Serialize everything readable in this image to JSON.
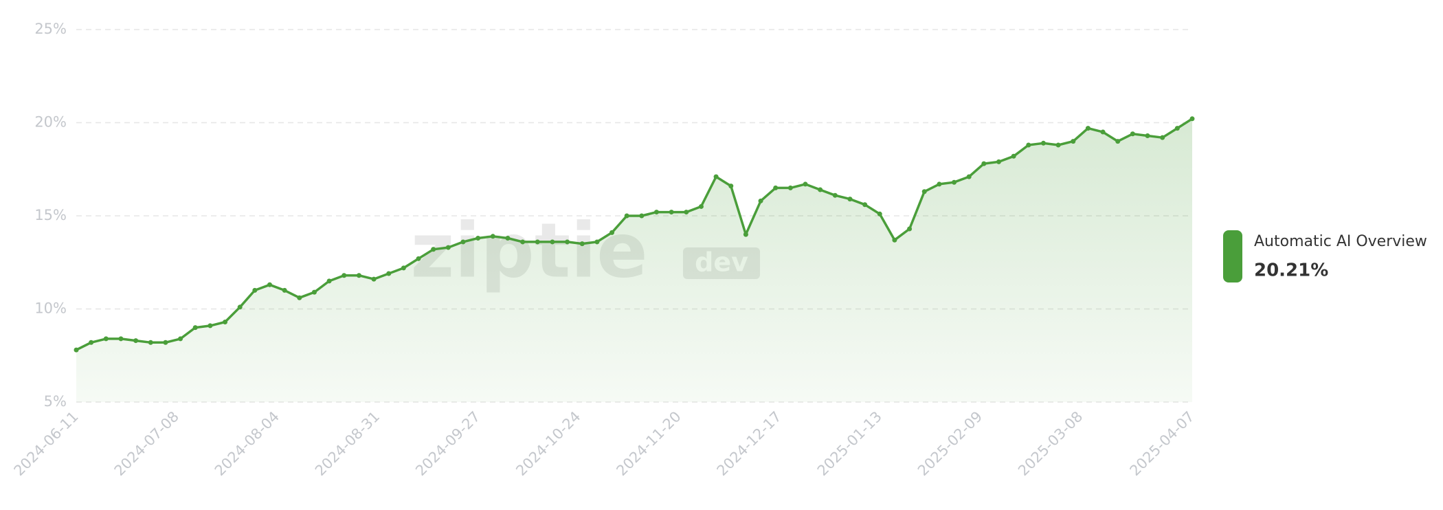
{
  "chart_data": {
    "type": "line",
    "x": [
      "2024-06-11",
      "2024-06-15",
      "2024-06-19",
      "2024-06-23",
      "2024-06-27",
      "2024-07-01",
      "2024-07-05",
      "2024-07-09",
      "2024-07-13",
      "2024-07-17",
      "2024-07-21",
      "2024-07-25",
      "2024-07-29",
      "2024-08-02",
      "2024-08-06",
      "2024-08-10",
      "2024-08-14",
      "2024-08-18",
      "2024-08-22",
      "2024-08-26",
      "2024-08-30",
      "2024-09-03",
      "2024-09-07",
      "2024-09-11",
      "2024-09-15",
      "2024-09-19",
      "2024-09-23",
      "2024-09-27",
      "2024-10-01",
      "2024-10-05",
      "2024-10-09",
      "2024-10-13",
      "2024-10-17",
      "2024-10-21",
      "2024-10-25",
      "2024-10-29",
      "2024-11-02",
      "2024-11-06",
      "2024-11-10",
      "2024-11-14",
      "2024-11-18",
      "2024-11-22",
      "2024-11-26",
      "2024-11-30",
      "2024-12-04",
      "2024-12-08",
      "2024-12-12",
      "2024-12-16",
      "2024-12-20",
      "2024-12-24",
      "2024-12-28",
      "2025-01-01",
      "2025-01-05",
      "2025-01-09",
      "2025-01-13",
      "2025-01-17",
      "2025-01-21",
      "2025-01-25",
      "2025-01-29",
      "2025-02-02",
      "2025-02-06",
      "2025-02-10",
      "2025-02-14",
      "2025-02-18",
      "2025-02-22",
      "2025-02-26",
      "2025-03-02",
      "2025-03-06",
      "2025-03-10",
      "2025-03-14",
      "2025-03-18",
      "2025-03-22",
      "2025-03-26",
      "2025-03-30",
      "2025-04-03",
      "2025-04-07"
    ],
    "series": [
      {
        "name": "Automatic AI Overview",
        "color": "#4a9e3a",
        "values": [
          7.8,
          8.2,
          8.4,
          8.4,
          8.3,
          8.2,
          8.2,
          8.4,
          9.0,
          9.1,
          9.3,
          10.1,
          11.0,
          11.3,
          11.0,
          10.6,
          10.9,
          11.5,
          11.8,
          11.8,
          11.6,
          11.9,
          12.2,
          12.7,
          13.2,
          13.3,
          13.6,
          13.8,
          13.9,
          13.8,
          13.6,
          13.6,
          13.6,
          13.6,
          13.5,
          13.6,
          14.1,
          15.0,
          15.0,
          15.2,
          15.2,
          15.2,
          15.5,
          17.1,
          16.6,
          14.0,
          15.8,
          16.5,
          16.5,
          16.7,
          16.4,
          16.1,
          15.9,
          15.6,
          15.1,
          13.7,
          14.3,
          16.3,
          16.7,
          16.8,
          17.1,
          17.8,
          17.9,
          18.2,
          18.8,
          18.9,
          18.8,
          19.0,
          19.7,
          19.5,
          19.0,
          19.4,
          19.3,
          19.2,
          19.7,
          20.21
        ],
        "legend_value": "20.21%"
      }
    ],
    "xlim": [
      "2024-06-11",
      "2025-04-07"
    ],
    "xticks": [
      "2024-06-11",
      "2024-07-08",
      "2024-08-04",
      "2024-08-31",
      "2024-09-27",
      "2024-10-24",
      "2024-11-20",
      "2024-12-17",
      "2025-01-13",
      "2025-02-09",
      "2025-03-08",
      "2025-04-07"
    ],
    "ylim": [
      5,
      25
    ],
    "yticks": [
      {
        "value": 5,
        "label": "5%"
      },
      {
        "value": 10,
        "label": "10%"
      },
      {
        "value": 15,
        "label": "15%"
      },
      {
        "value": 20,
        "label": "20%"
      },
      {
        "value": 25,
        "label": "25%"
      }
    ],
    "grid": true,
    "legend": "right",
    "watermark": {
      "text": "ziptie",
      "badge": "dev"
    }
  }
}
